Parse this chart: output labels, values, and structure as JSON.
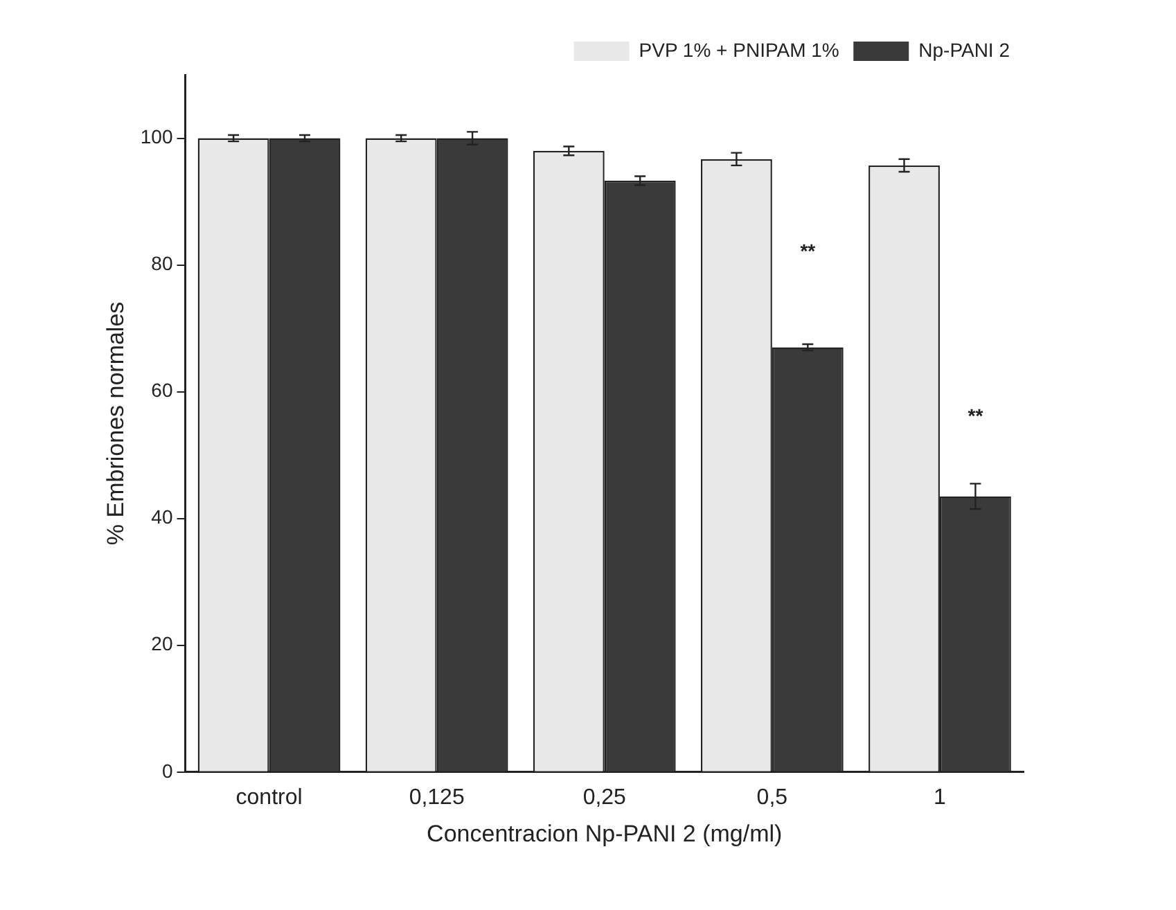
{
  "chart_data": {
    "type": "bar",
    "xlabel": "Concentracion Np-PANI 2 (mg/ml)",
    "ylabel": "% Embriones normales",
    "categories": [
      "control",
      "0,125",
      "0,25",
      "0,5",
      "1"
    ],
    "series": [
      {
        "name": "PVP 1% + PNIPAM 1%",
        "color": "#e8e8e8",
        "values": [
          100,
          100,
          98,
          96.7,
          95.7
        ],
        "errors": [
          0.5,
          0.5,
          0.7,
          1,
          1
        ]
      },
      {
        "name": "Np-PANI 2",
        "color": "#3a3a3a",
        "values": [
          100,
          100,
          93.3,
          67,
          43.5
        ],
        "errors": [
          0.5,
          1,
          0.7,
          0.5,
          2
        ]
      }
    ],
    "annotations": [
      {
        "text": "**",
        "x": "0,5",
        "y": 82
      },
      {
        "text": "**",
        "x": "1",
        "y": 56
      }
    ],
    "ylim": [
      0,
      110
    ],
    "yticks": [
      0,
      20,
      40,
      60,
      80,
      100
    ],
    "grid": false,
    "legend": "top right"
  }
}
